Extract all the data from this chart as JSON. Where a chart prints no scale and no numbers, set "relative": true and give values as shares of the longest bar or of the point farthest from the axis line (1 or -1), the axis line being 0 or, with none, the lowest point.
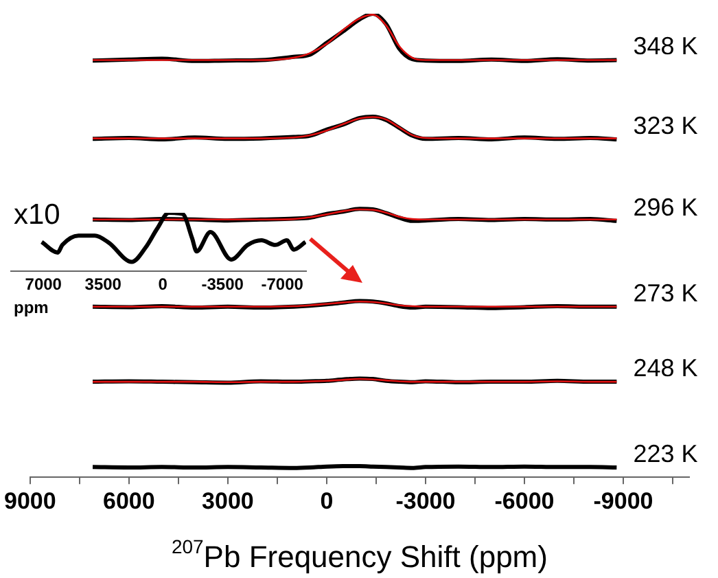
{
  "chart_data": [
    {
      "type": "line",
      "xlabel": "$^{207}$Pb Frequency Shift (ppm)",
      "relative": true,
      "legend": false,
      "grid": false,
      "x": [
        7100,
        6000,
        5000,
        4000,
        3000,
        2000,
        1000,
        500,
        0,
        -500,
        -1000,
        -1400,
        -1800,
        -2200,
        -2600,
        -3000,
        -4000,
        -5000,
        -6000,
        -7000,
        -8000,
        -8800
      ],
      "xlim": [
        9000,
        -11000
      ],
      "xticks": [
        9000,
        {
          "value": 7500,
          "label": null
        },
        6000,
        {
          "value": 4500,
          "label": null
        },
        3000,
        {
          "value": 1500,
          "label": null
        },
        0,
        {
          "value": -1500,
          "label": null
        },
        -3000,
        {
          "value": -4500,
          "label": null
        },
        -6000,
        {
          "value": -7500,
          "label": null
        },
        -9000,
        {
          "value": -10500,
          "label": null
        }
      ],
      "series": [
        {
          "name": "348 K",
          "color": "#000000",
          "values": [
            0.899,
            0.901,
            0.903,
            0.898,
            0.899,
            0.9,
            0.907,
            0.912,
            0.937,
            0.962,
            0.988,
            1.0,
            0.978,
            0.925,
            0.902,
            0.899,
            0.898,
            0.901,
            0.898,
            0.902,
            0.899,
            0.9
          ]
        },
        {
          "color": "#e01010",
          "values": [
            0.9,
            0.9,
            0.9,
            0.9,
            0.9,
            0.9,
            0.905,
            0.915,
            0.935,
            0.965,
            0.99,
            0.998,
            0.975,
            0.93,
            0.905,
            0.9,
            0.9,
            0.9,
            0.9,
            0.9,
            0.9,
            0.9
          ]
        },
        {
          "name": "323 K",
          "color": "#000000",
          "values": [
            0.73,
            0.732,
            0.729,
            0.733,
            0.73,
            0.731,
            0.734,
            0.737,
            0.75,
            0.761,
            0.775,
            0.778,
            0.771,
            0.754,
            0.737,
            0.73,
            0.732,
            0.729,
            0.733,
            0.73,
            0.732,
            0.729
          ]
        },
        {
          "color": "#e01010",
          "values": [
            0.731,
            0.731,
            0.731,
            0.731,
            0.731,
            0.731,
            0.733,
            0.738,
            0.748,
            0.762,
            0.774,
            0.777,
            0.772,
            0.755,
            0.738,
            0.732,
            0.731,
            0.731,
            0.731,
            0.731,
            0.731,
            0.731
          ]
        },
        {
          "name": "296 K",
          "color": "#000000",
          "values": [
            0.556,
            0.555,
            0.557,
            0.556,
            0.554,
            0.556,
            0.558,
            0.56,
            0.568,
            0.573,
            0.579,
            0.578,
            0.57,
            0.56,
            0.553,
            0.554,
            0.557,
            0.555,
            0.557,
            0.556,
            0.557,
            0.553
          ]
        },
        {
          "color": "#e01010",
          "values": [
            0.556,
            0.556,
            0.556,
            0.556,
            0.556,
            0.556,
            0.557,
            0.561,
            0.567,
            0.574,
            0.578,
            0.577,
            0.571,
            0.562,
            0.557,
            0.556,
            0.556,
            0.556,
            0.556,
            0.556,
            0.556,
            0.556
          ]
        },
        {
          "name": "273 K",
          "color": "#000000",
          "values": [
            0.368,
            0.367,
            0.369,
            0.366,
            0.368,
            0.366,
            0.368,
            0.37,
            0.373,
            0.377,
            0.38,
            0.379,
            0.375,
            0.369,
            0.366,
            0.368,
            0.367,
            0.365,
            0.367,
            0.369,
            0.368,
            0.368
          ]
        },
        {
          "color": "#e01010",
          "values": [
            0.368,
            0.368,
            0.368,
            0.368,
            0.368,
            0.368,
            0.369,
            0.371,
            0.374,
            0.377,
            0.379,
            0.378,
            0.375,
            0.371,
            0.369,
            0.368,
            0.368,
            0.368,
            0.368,
            0.368,
            0.368,
            0.368
          ]
        },
        {
          "name": "248 K",
          "color": "#000000",
          "values": [
            0.206,
            0.207,
            0.206,
            0.205,
            0.204,
            0.207,
            0.206,
            0.207,
            0.208,
            0.211,
            0.213,
            0.212,
            0.208,
            0.206,
            0.205,
            0.207,
            0.205,
            0.206,
            0.206,
            0.208,
            0.206,
            0.206
          ]
        },
        {
          "color": "#e01010",
          "values": [
            0.206,
            0.206,
            0.206,
            0.206,
            0.205,
            0.206,
            0.206,
            0.207,
            0.208,
            0.21,
            0.212,
            0.211,
            0.209,
            0.207,
            0.206,
            0.206,
            0.206,
            0.206,
            0.206,
            0.207,
            0.206,
            0.206
          ]
        },
        {
          "name": "223 K",
          "color": "#000000",
          "values": [
            0.022,
            0.021,
            0.022,
            0.021,
            0.022,
            0.021,
            0.02,
            0.021,
            0.023,
            0.024,
            0.024,
            0.023,
            0.022,
            0.021,
            0.02,
            0.022,
            0.023,
            0.022,
            0.023,
            0.022,
            0.022,
            0.021
          ]
        }
      ]
    },
    {
      "type": "line",
      "xlabel": "ppm",
      "relative": true,
      "legend": false,
      "grid": false,
      "annotations": [
        "x10"
      ],
      "x": [
        7100,
        6160,
        5890,
        4940,
        3990,
        3170,
        1820,
        1000,
        330,
        -350,
        -1160,
        -1710,
        -1980,
        -2790,
        -4010,
        -4970,
        -5780,
        -6590,
        -7270,
        -7680,
        -8360
      ],
      "xlim": [
        8900,
        -8400
      ],
      "xticks": [
        7000,
        3500,
        0,
        -3500,
        -7000
      ],
      "series": [
        {
          "color": "#000000",
          "values": [
            0.5,
            0.32,
            0.45,
            0.61,
            0.61,
            0.49,
            0.16,
            0.41,
            0.73,
            1.0,
            0.98,
            0.57,
            0.34,
            0.67,
            0.2,
            0.45,
            0.53,
            0.45,
            0.53,
            0.37,
            0.5
          ]
        }
      ]
    }
  ]
}
